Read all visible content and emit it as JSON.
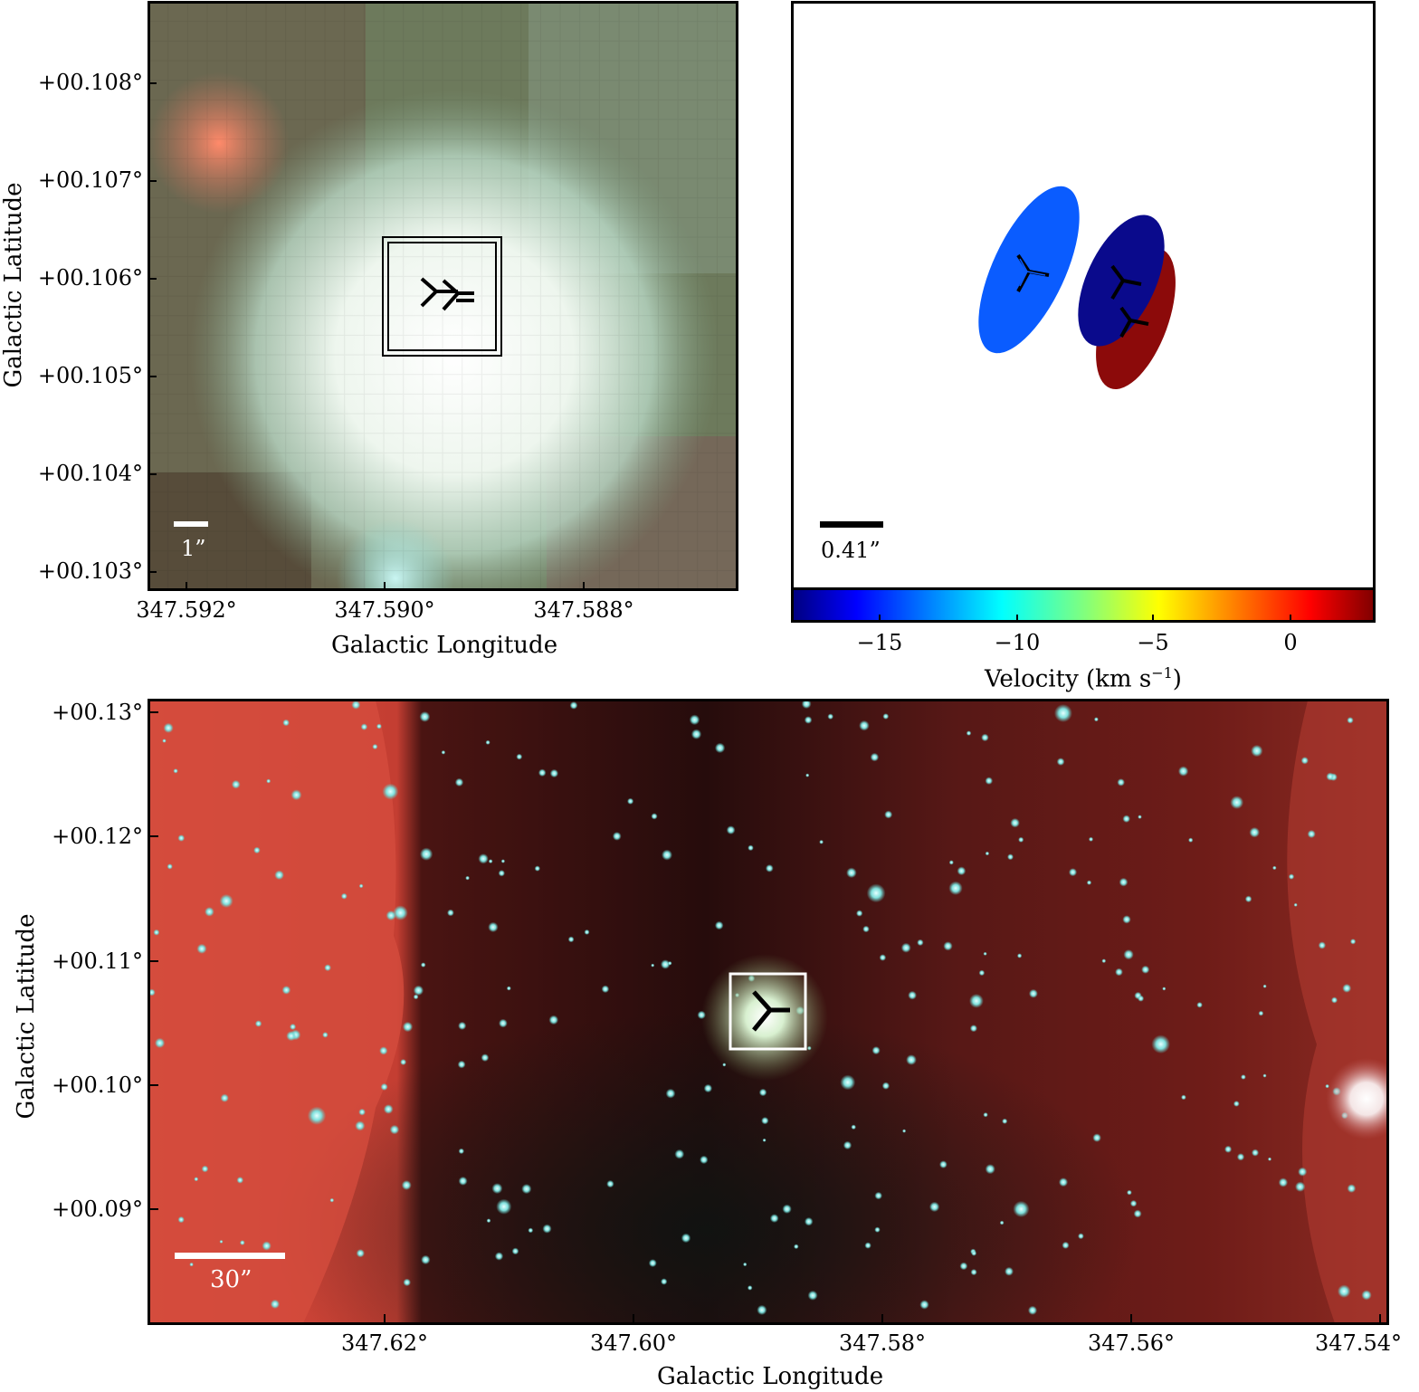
{
  "top_left_panel": {
    "y_ticks": [
      "+00.108°",
      "+00.107°",
      "+00.106°",
      "+00.105°",
      "+00.104°",
      "+00.103°"
    ],
    "x_ticks": [
      "347.592°",
      "347.590°",
      "347.588°"
    ],
    "xlabel": "Galactic Longitude",
    "ylabel": "Galactic Latitude",
    "scalebar_label": "1”"
  },
  "top_right_panel": {
    "scalebar_label": "0.41”",
    "colorbar_ticks": [
      "−15",
      "−10",
      "−5",
      "0"
    ],
    "colorbar_label": "Velocity (km s",
    "colorbar_label_sup": "−1",
    "colorbar_label_close": ")",
    "colorbar_range": [
      -18,
      3
    ],
    "components": [
      {
        "velocity": -12,
        "color": "#0a5cff"
      },
      {
        "velocity": -17,
        "color": "#0a0a8c"
      },
      {
        "velocity": 1,
        "color": "#8c0a0a"
      }
    ]
  },
  "bottom_panel": {
    "y_ticks": [
      "+00.13°",
      "+00.12°",
      "+00.11°",
      "+00.10°",
      "+00.09°"
    ],
    "x_ticks": [
      "347.62°",
      "347.60°",
      "347.58°",
      "347.56°",
      "347.54°"
    ],
    "xlabel": "Galactic Longitude",
    "ylabel": "Galactic Latitude",
    "scalebar_label": "30”"
  }
}
